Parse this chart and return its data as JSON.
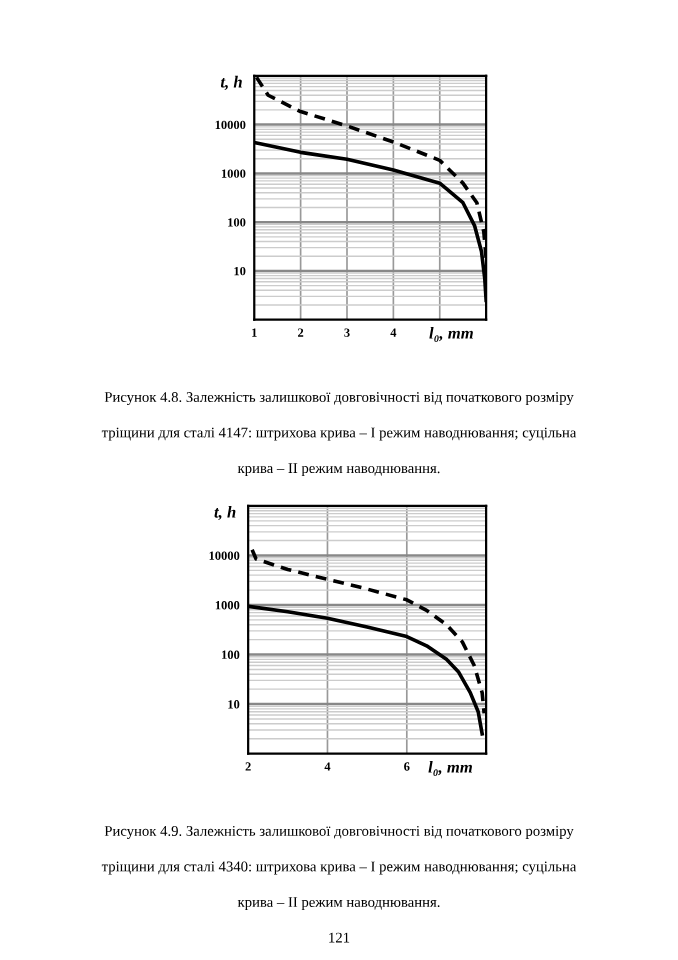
{
  "chart_data": [
    {
      "type": "line",
      "xlabel": "l₀, mm",
      "ylabel": "t, h",
      "log": "y",
      "grid": true,
      "xlim": [
        1,
        6
      ],
      "ylim": [
        1,
        100000
      ],
      "xticks": [
        1,
        2,
        3,
        4,
        {
          "value": 5,
          "label": null
        }
      ],
      "yticks": [
        10,
        100,
        1000,
        10000
      ],
      "series": [
        {
          "color": "#000000",
          "line_style": "dashed",
          "x": [
            1.05,
            1.3,
            2,
            3,
            4,
            5,
            5.5,
            5.8,
            5.95,
            6.0
          ],
          "values": [
            93000,
            40000,
            18500,
            9400,
            4400,
            1850,
            630,
            250,
            63,
            18
          ]
        },
        {
          "color": "#000000",
          "line_style": "solid",
          "x": [
            1,
            2,
            3,
            4,
            5,
            5.5,
            5.75,
            5.9,
            5.97,
            6.0
          ],
          "values": [
            4300,
            2700,
            1950,
            1170,
            630,
            250,
            85,
            25,
            7,
            2.5
          ]
        }
      ],
      "annotations": [
        "Рисунок 4.8. Залежність залишкової довговічності від початкового розміру",
        "тріщини для сталі 4147: штрихова крива – I режим наводнювання; суцільна",
        "крива – II режим наводнювання."
      ]
    },
    {
      "type": "line",
      "xlabel": "l₀, mm",
      "ylabel": "t, h",
      "log": "y",
      "grid": true,
      "xlim": [
        2,
        8
      ],
      "ylim": [
        1,
        100000
      ],
      "xticks": [
        2,
        4,
        6
      ],
      "yticks": [
        10,
        100,
        1000,
        10000
      ],
      "series": [
        {
          "color": "#000000",
          "line_style": "dashed",
          "x": [
            2.1,
            2.2,
            3,
            4,
            5,
            6,
            6.5,
            7,
            7.4,
            7.7,
            7.9,
            7.95
          ],
          "values": [
            13000,
            8500,
            5200,
            3300,
            2100,
            1270,
            780,
            400,
            180,
            60,
            17,
            6.5
          ]
        },
        {
          "color": "#000000",
          "line_style": "solid",
          "x": [
            2,
            3,
            4,
            5,
            6,
            6.5,
            7,
            7.3,
            7.6,
            7.8,
            7.9
          ],
          "values": [
            940,
            730,
            540,
            360,
            230,
            150,
            80,
            45,
            17,
            7,
            2.5
          ]
        }
      ],
      "annotations": [
        "Рисунок 4.9. Залежність залишкової довговічності від початкового розміру",
        "тріщини для сталі 4340: штрихова крива – I режим наводнювання; суцільна",
        "крива – II режим наводнювання.",
        "121"
      ]
    }
  ]
}
